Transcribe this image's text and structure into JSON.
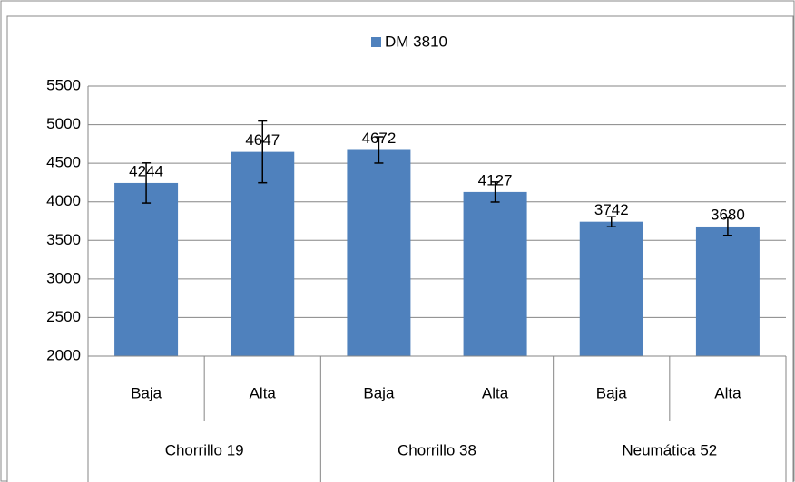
{
  "chart_data": {
    "type": "bar",
    "categories": [
      "Baja",
      "Alta",
      "Baja",
      "Alta",
      "Baja",
      "Alta"
    ],
    "groups": [
      "Chorrillo 19",
      "Chorrillo 38",
      "Neumática 52"
    ],
    "series": [
      {
        "name": "DM 3810",
        "color": "#4f81bd",
        "values": [
          4244,
          4647,
          4672,
          4127,
          3742,
          3680
        ],
        "errors": [
          260,
          400,
          170,
          130,
          65,
          115
        ]
      }
    ],
    "ylim": [
      2000,
      5500
    ],
    "yticks": [
      2000,
      2500,
      3000,
      3500,
      4000,
      4500,
      5000,
      5500
    ],
    "grid": true,
    "legend": "top"
  }
}
